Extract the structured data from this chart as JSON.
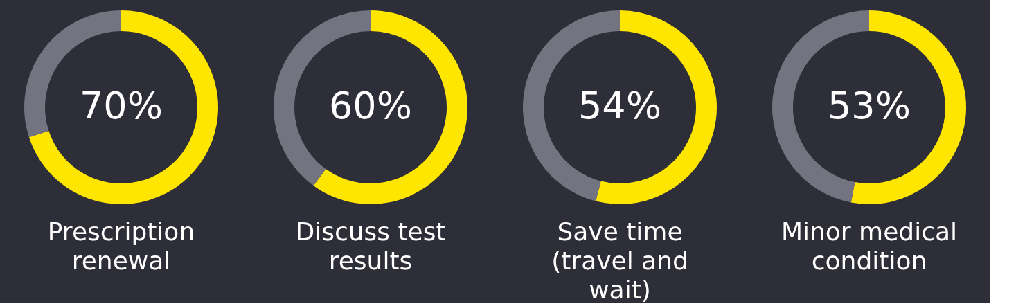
{
  "chart_data": [
    {
      "type": "donut",
      "title": "Prescription renewal",
      "categories": [
        null,
        null
      ],
      "values": [
        70,
        30
      ],
      "colors": [
        "#ffe600",
        "#747480"
      ],
      "value_labels": [
        "70%",
        null
      ]
    },
    {
      "type": "donut",
      "title": "Discuss test results",
      "categories": [
        null,
        null
      ],
      "values": [
        60,
        40
      ],
      "colors": [
        "#ffe600",
        "#747480"
      ],
      "value_labels": [
        "60%",
        null
      ]
    },
    {
      "type": "donut",
      "title": "Save time (travel and wait)",
      "categories": [
        null,
        null
      ],
      "values": [
        54,
        46
      ],
      "colors": [
        "#ffe600",
        "#747480"
      ],
      "value_labels": [
        "54%",
        null
      ]
    },
    {
      "type": "donut",
      "title": "Minor medical condition",
      "categories": [
        null,
        null
      ],
      "values": [
        53,
        47
      ],
      "colors": [
        "#ffe600",
        "#747480"
      ],
      "value_labels": [
        "53%",
        null
      ]
    }
  ]
}
